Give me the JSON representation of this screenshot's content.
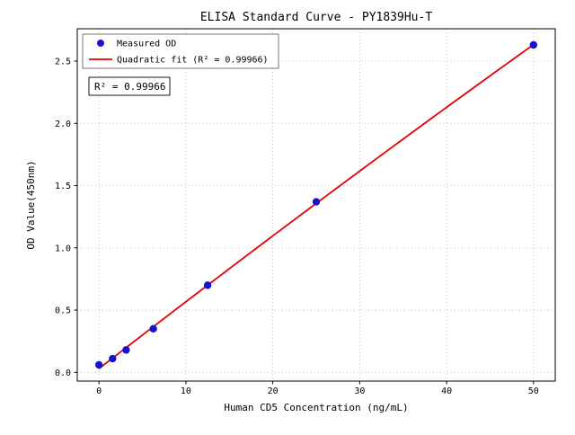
{
  "chart_data": {
    "type": "scatter",
    "title": "ELISA Standard Curve - PY1839Hu-T",
    "xlabel": "Human CD5 Concentration (ng/mL)",
    "ylabel": "OD Value(450nm)",
    "xlim": [
      -2.5,
      52.5
    ],
    "ylim": [
      -0.07,
      2.76
    ],
    "xticks": [
      0,
      10,
      20,
      30,
      40,
      50
    ],
    "yticks": [
      0.0,
      0.5,
      1.0,
      1.5,
      2.0,
      2.5
    ],
    "grid": true,
    "grid_color": "#b4b4b4",
    "legend_position": "upper-left",
    "annotation": "R² = 0.99966",
    "series": [
      {
        "name": "Measured OD",
        "kind": "scatter",
        "color": "#1414cc",
        "x": [
          0,
          1.563,
          3.125,
          6.25,
          12.5,
          25,
          50
        ],
        "y": [
          0.06,
          0.11,
          0.18,
          0.35,
          0.7,
          1.37,
          2.63
        ]
      },
      {
        "name": "Quadratic fit (R² = 0.99966)",
        "kind": "line",
        "fit": "quadratic",
        "color": "#e60000"
      }
    ]
  }
}
